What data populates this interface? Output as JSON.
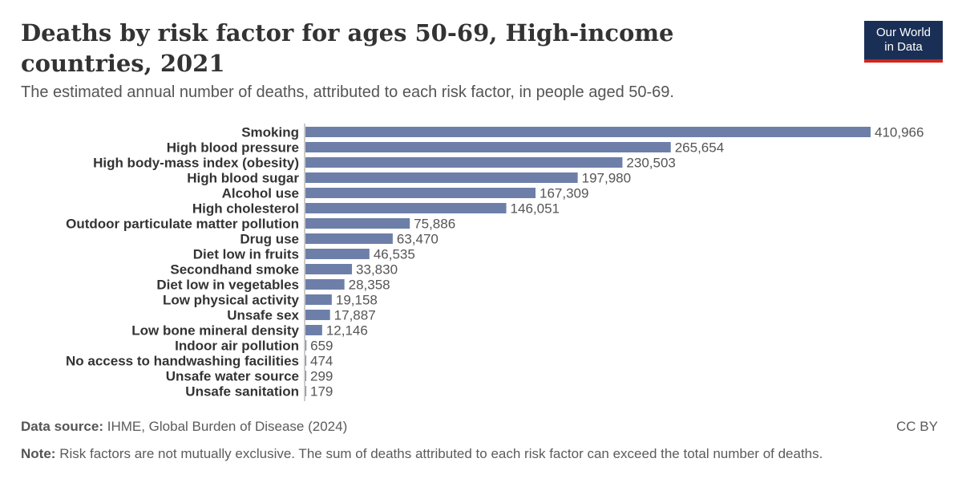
{
  "header": {
    "title": "Deaths by risk factor for ages 50-69, High-income countries, 2021",
    "subtitle": "The estimated annual number of deaths, attributed to each risk factor, in people aged 50-69."
  },
  "logo": {
    "line1": "Our World",
    "line2": "in Data"
  },
  "footer": {
    "source_label": "Data source:",
    "source_text": "IHME, Global Burden of Disease (2024)",
    "license": "CC BY",
    "note_label": "Note:",
    "note_text": "Risk factors are not mutually exclusive. The sum of deaths attributed to each risk factor can exceed the total number of deaths."
  },
  "colors": {
    "bar": "#6d7fa9",
    "axis": "#999999",
    "label": "#333333",
    "value": "#555555"
  },
  "chart_data": {
    "type": "bar",
    "orientation": "horizontal",
    "title": "Deaths by risk factor for ages 50-69, High-income countries, 2021",
    "categories": [
      "Smoking",
      "High blood pressure",
      "High body-mass index (obesity)",
      "High blood sugar",
      "Alcohol use",
      "High cholesterol",
      "Outdoor particulate matter pollution",
      "Drug use",
      "Diet low in fruits",
      "Secondhand smoke",
      "Diet low in vegetables",
      "Low physical activity",
      "Unsafe sex",
      "Low bone mineral density",
      "Indoor air pollution",
      "No access to handwashing facilities",
      "Unsafe water source",
      "Unsafe sanitation"
    ],
    "values": [
      410966,
      265654,
      230503,
      197980,
      167309,
      146051,
      75886,
      63470,
      46535,
      33830,
      28358,
      19158,
      17887,
      12146,
      659,
      474,
      299,
      179
    ],
    "value_labels": [
      "410,966",
      "265,654",
      "230,503",
      "197,980",
      "167,309",
      "146,051",
      "75,886",
      "63,470",
      "46,535",
      "33,830",
      "28,358",
      "19,158",
      "17,887",
      "12,146",
      "659",
      "474",
      "299",
      "179"
    ],
    "xlim": [
      0,
      410966
    ],
    "grid": false
  }
}
